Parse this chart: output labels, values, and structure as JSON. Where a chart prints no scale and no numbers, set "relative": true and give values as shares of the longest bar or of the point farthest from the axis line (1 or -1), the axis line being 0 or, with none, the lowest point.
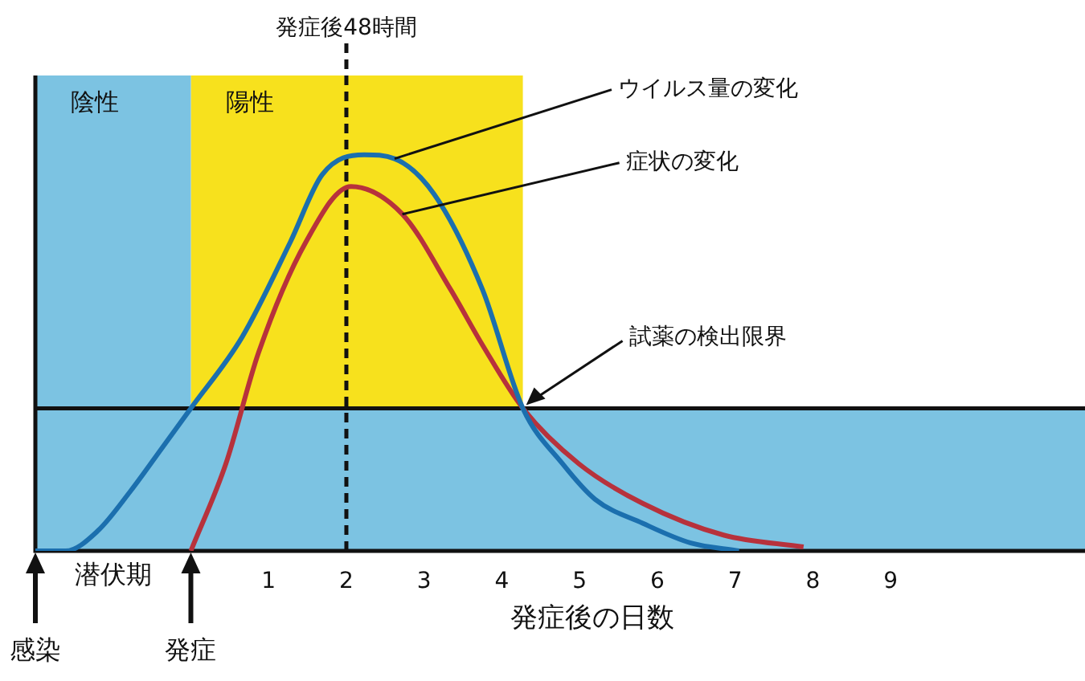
{
  "chart_data": {
    "type": "line",
    "relative": true,
    "xlabel": "発症後の日数",
    "xlim": [
      -2,
      11.5
    ],
    "xticks": [
      1,
      2,
      3,
      4,
      5,
      6,
      7,
      8,
      9
    ],
    "series": [
      {
        "name": "ウイルス量の変化",
        "color": "#1b6fae",
        "x": [
          -2,
          -1.61,
          -1.2,
          -0.78,
          -0.37,
          0,
          0.66,
          1.28,
          1.69,
          2.23,
          2.62,
          3.13,
          3.75,
          4.27,
          4.78,
          5.2,
          5.81,
          6.43,
          7.05
        ],
        "values": [
          0,
          0,
          0.05,
          0.15,
          0.26,
          0.36,
          0.54,
          0.78,
          0.95,
          1,
          0.99,
          0.9,
          0.66,
          0.36,
          0.22,
          0.13,
          0.07,
          0.02,
          0
        ]
      },
      {
        "name": "症状の変化",
        "color": "#b7323c",
        "x": [
          0,
          0.45,
          0.87,
          1.48,
          2.06,
          2.72,
          3.34,
          3.75,
          4.27,
          4.99,
          5.81,
          6.85,
          7.88
        ],
        "values": [
          0,
          0.22,
          0.5,
          0.78,
          0.92,
          0.85,
          0.66,
          0.52,
          0.36,
          0.22,
          0.12,
          0.04,
          0.01
        ]
      }
    ],
    "ref_lines": [
      {
        "axis": "x",
        "value": 2,
        "label": "発症後48時間",
        "line_style": "dashed",
        "color": "#111111"
      },
      {
        "axis": "y",
        "value": 0.36,
        "label": "試薬の検出限界",
        "color": "#111111"
      }
    ],
    "bands": [
      {
        "axis": "x",
        "from": 0,
        "to": 4.27,
        "label": "陽性",
        "color": "#f7e11d"
      },
      {
        "axis": "x",
        "from": -2,
        "to": 0,
        "label": "陰性",
        "color": "#7cc3e2"
      },
      {
        "axis": "y",
        "from": 0,
        "to": 0.36,
        "color": "#7cc3e2"
      }
    ],
    "annotations": [
      "感染",
      "発症",
      "潜伏期"
    ],
    "legend": false,
    "grid": false,
    "marker": "none",
    "line_style": "solid"
  }
}
